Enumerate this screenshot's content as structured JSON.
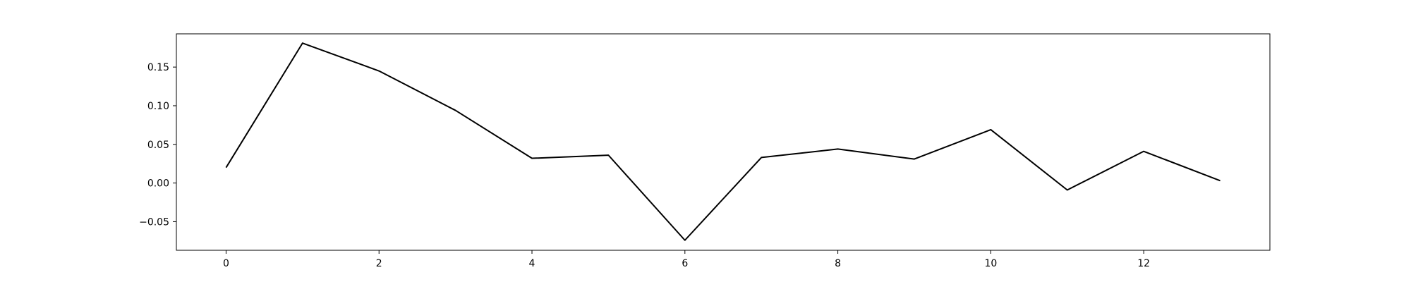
{
  "chart_data": {
    "type": "line",
    "title": "",
    "xlabel": "",
    "ylabel": "",
    "x": [
      0,
      1,
      2,
      3,
      4,
      5,
      6,
      7,
      8,
      9,
      10,
      11,
      12,
      13
    ],
    "series": [
      {
        "values": [
          0.02,
          0.181,
          0.145,
          0.094,
          0.032,
          0.036,
          -0.074,
          0.033,
          0.044,
          0.031,
          0.069,
          -0.009,
          0.041,
          0.003
        ]
      }
    ],
    "xlim": [
      -0.65,
      13.65
    ],
    "ylim": [
      -0.087,
      0.193
    ],
    "xticks": [
      0,
      2,
      4,
      6,
      8,
      10,
      12
    ],
    "yticks": [
      -0.05,
      0.0,
      0.05,
      0.1,
      0.15
    ],
    "xtick_labels": [
      "0",
      "2",
      "4",
      "6",
      "8",
      "10",
      "12"
    ],
    "ytick_labels": [
      "−0.05",
      "0.00",
      "0.05",
      "0.10",
      "0.15"
    ],
    "grid": false,
    "legend": "none",
    "line_color": "#000000"
  }
}
